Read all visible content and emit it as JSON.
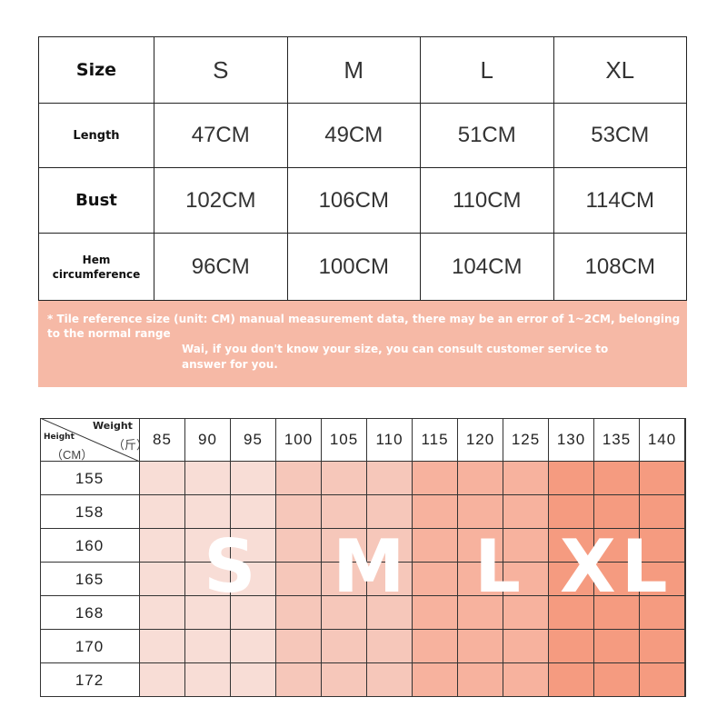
{
  "size_table": {
    "header": {
      "label": "Size",
      "sizes": [
        "S",
        "M",
        "L",
        "XL"
      ]
    },
    "rows": [
      {
        "label": "Length",
        "values": [
          "47CM",
          "49CM",
          "51CM",
          "53CM"
        ]
      },
      {
        "label": "Bust",
        "values": [
          "102CM",
          "106CM",
          "110CM",
          "114CM"
        ]
      },
      {
        "label_line1": "Hem",
        "label_line2": "circumference",
        "values": [
          "96CM",
          "100CM",
          "104CM",
          "108CM"
        ]
      }
    ]
  },
  "note": {
    "line1": "* Tile reference size (unit: CM) manual measurement data, there may be an error of 1~2CM, belonging to the normal range",
    "line2": "Wai, if you don't know your size, you can consult customer service to answer for you."
  },
  "grid": {
    "corner": {
      "weight": "Weight",
      "jin": "（斤）",
      "height": "Height",
      "cm": "（CM）"
    },
    "weights": [
      "85",
      "90",
      "95",
      "100",
      "105",
      "110",
      "115",
      "120",
      "125",
      "130",
      "135",
      "140"
    ],
    "heights": [
      "155",
      "158",
      "160",
      "165",
      "168",
      "170",
      "172"
    ],
    "size_labels": [
      "S",
      "M",
      "L",
      "XL"
    ],
    "colors": {
      "S": "#f8ddd6",
      "M": "#f6c7ba",
      "L": "#f7b29e",
      "XL": "#f59b80"
    }
  }
}
